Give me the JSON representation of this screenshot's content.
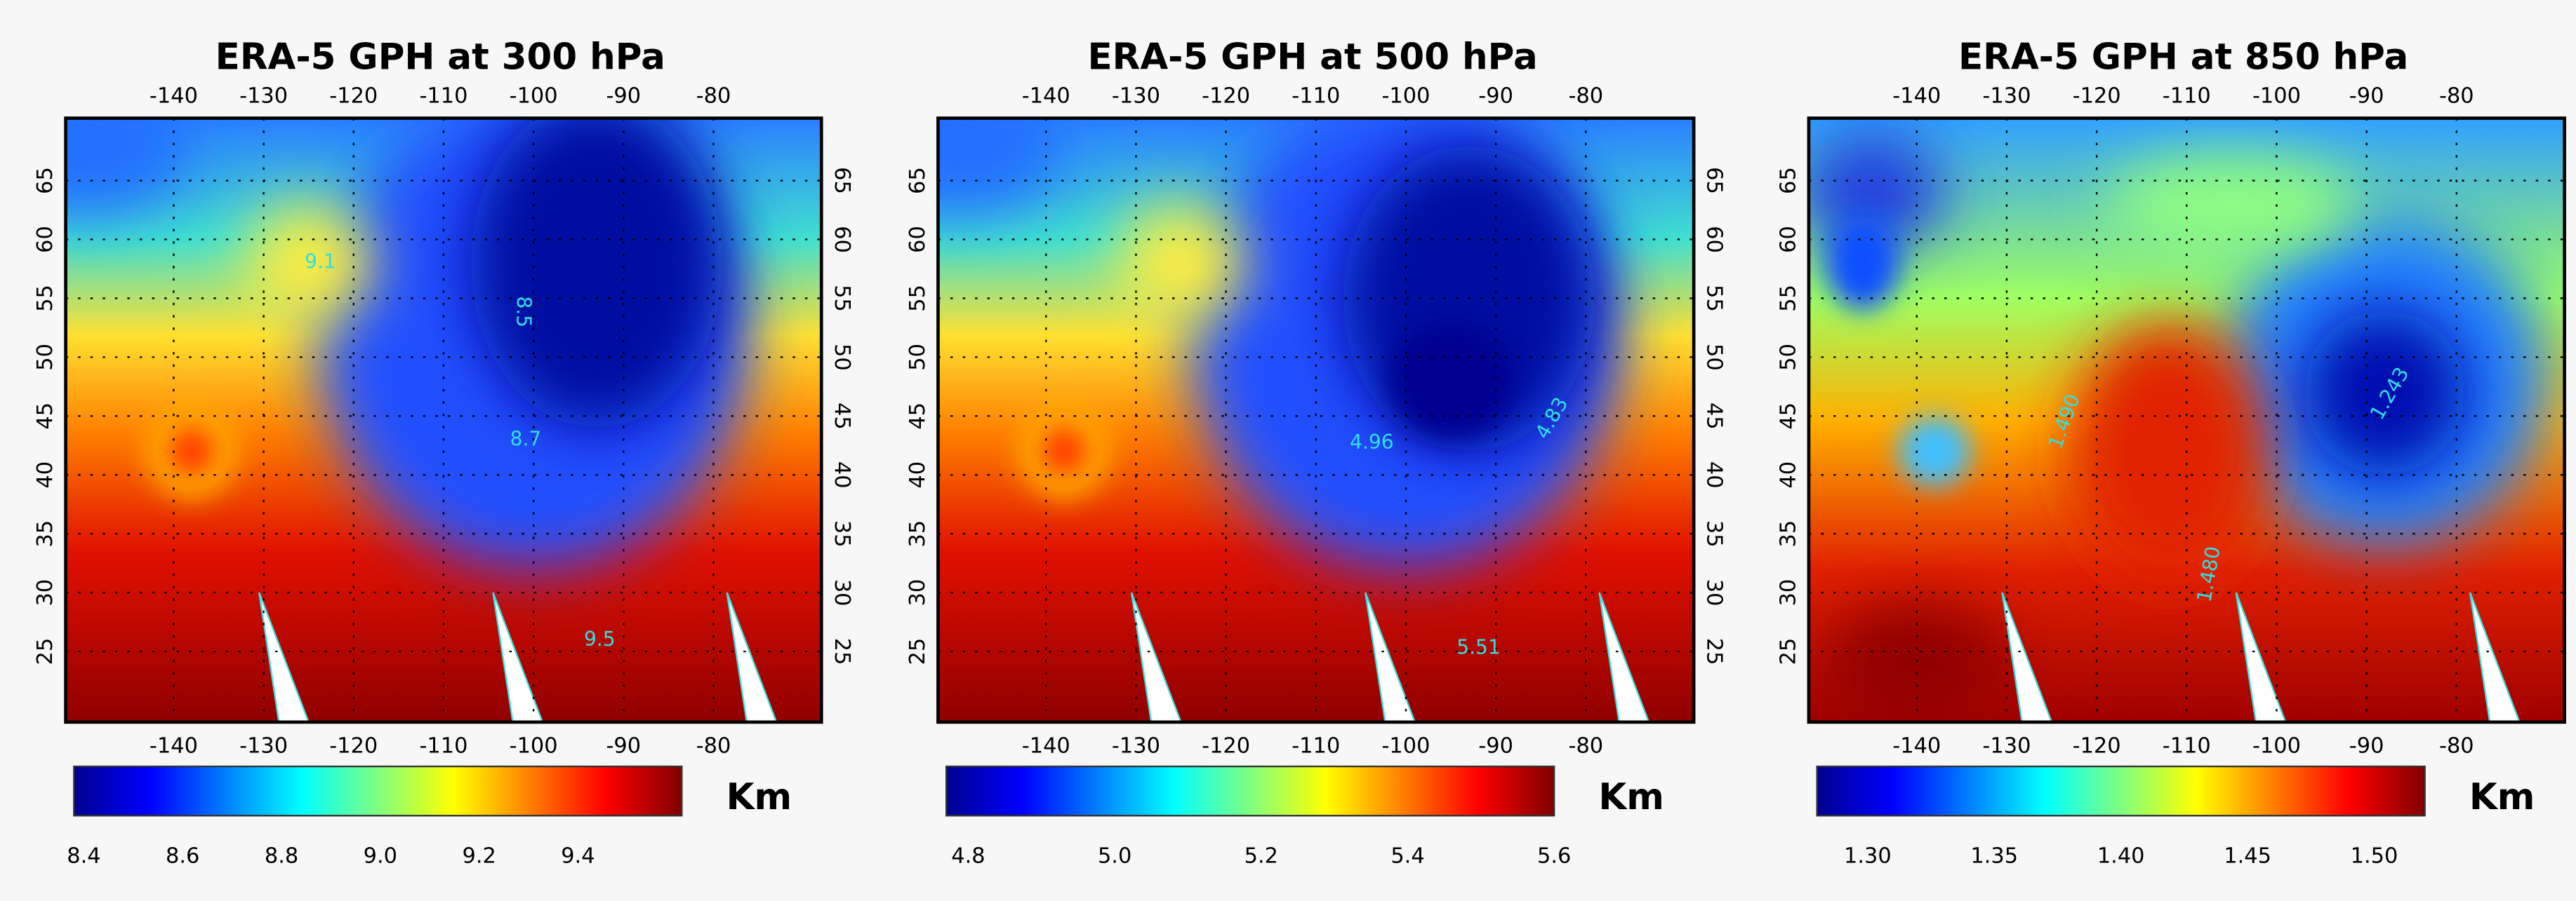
{
  "panels": [
    {
      "title": "ERA-5 GPH at 300 hPa",
      "xlim": [
        -152,
        -68
      ],
      "ylim": [
        19,
        70.3
      ],
      "xticks": [
        -140,
        -130,
        -120,
        -110,
        -100,
        -90,
        -80
      ],
      "yticks": [
        25,
        30,
        35,
        40,
        45,
        50,
        55,
        60,
        65
      ],
      "colorbar": {
        "lim": [
          8.38,
          9.61
        ],
        "ticks": [
          8.4,
          8.6,
          8.8,
          {
            "value": 9,
            "label": "9.0"
          },
          9.2,
          9.4
        ],
        "unit": "Km"
      },
      "contour_labels": [
        "9.1",
        "8.5",
        "8.7",
        "9.5"
      ]
    },
    {
      "title": "ERA-5 GPH at 500 hPa",
      "xlim": [
        -152,
        -68
      ],
      "ylim": [
        19,
        70.3
      ],
      "xticks": [
        -140,
        -130,
        -120,
        -110,
        -100,
        -90,
        -80
      ],
      "yticks": [
        25,
        30,
        35,
        40,
        45,
        50,
        55,
        60,
        65
      ],
      "colorbar": {
        "lim": [
          4.77,
          5.6
        ],
        "ticks": [
          4.8,
          {
            "value": 5,
            "label": "5.0"
          },
          5.2,
          5.4,
          5.6
        ],
        "unit": "Km"
      },
      "contour_labels": [
        "4.96",
        "4.83",
        "5.51"
      ]
    },
    {
      "title": "ERA-5 GPH at 850 hPa",
      "xlim": [
        -152,
        -68
      ],
      "ylim": [
        19,
        70.3
      ],
      "xticks": [
        -140,
        -130,
        -120,
        -110,
        -100,
        -90,
        -80
      ],
      "yticks": [
        25,
        30,
        35,
        40,
        45,
        50,
        55,
        60,
        65
      ],
      "colorbar": {
        "lim": [
          1.28,
          1.52
        ],
        "ticks": [
          {
            "value": 1.3,
            "label": "1.30"
          },
          1.35,
          {
            "value": 1.4,
            "label": "1.40"
          },
          1.45,
          {
            "value": 1.5,
            "label": "1.50"
          }
        ],
        "unit": "Km"
      },
      "contour_labels": [
        "1.490",
        "1.243",
        "1.480"
      ]
    }
  ]
}
